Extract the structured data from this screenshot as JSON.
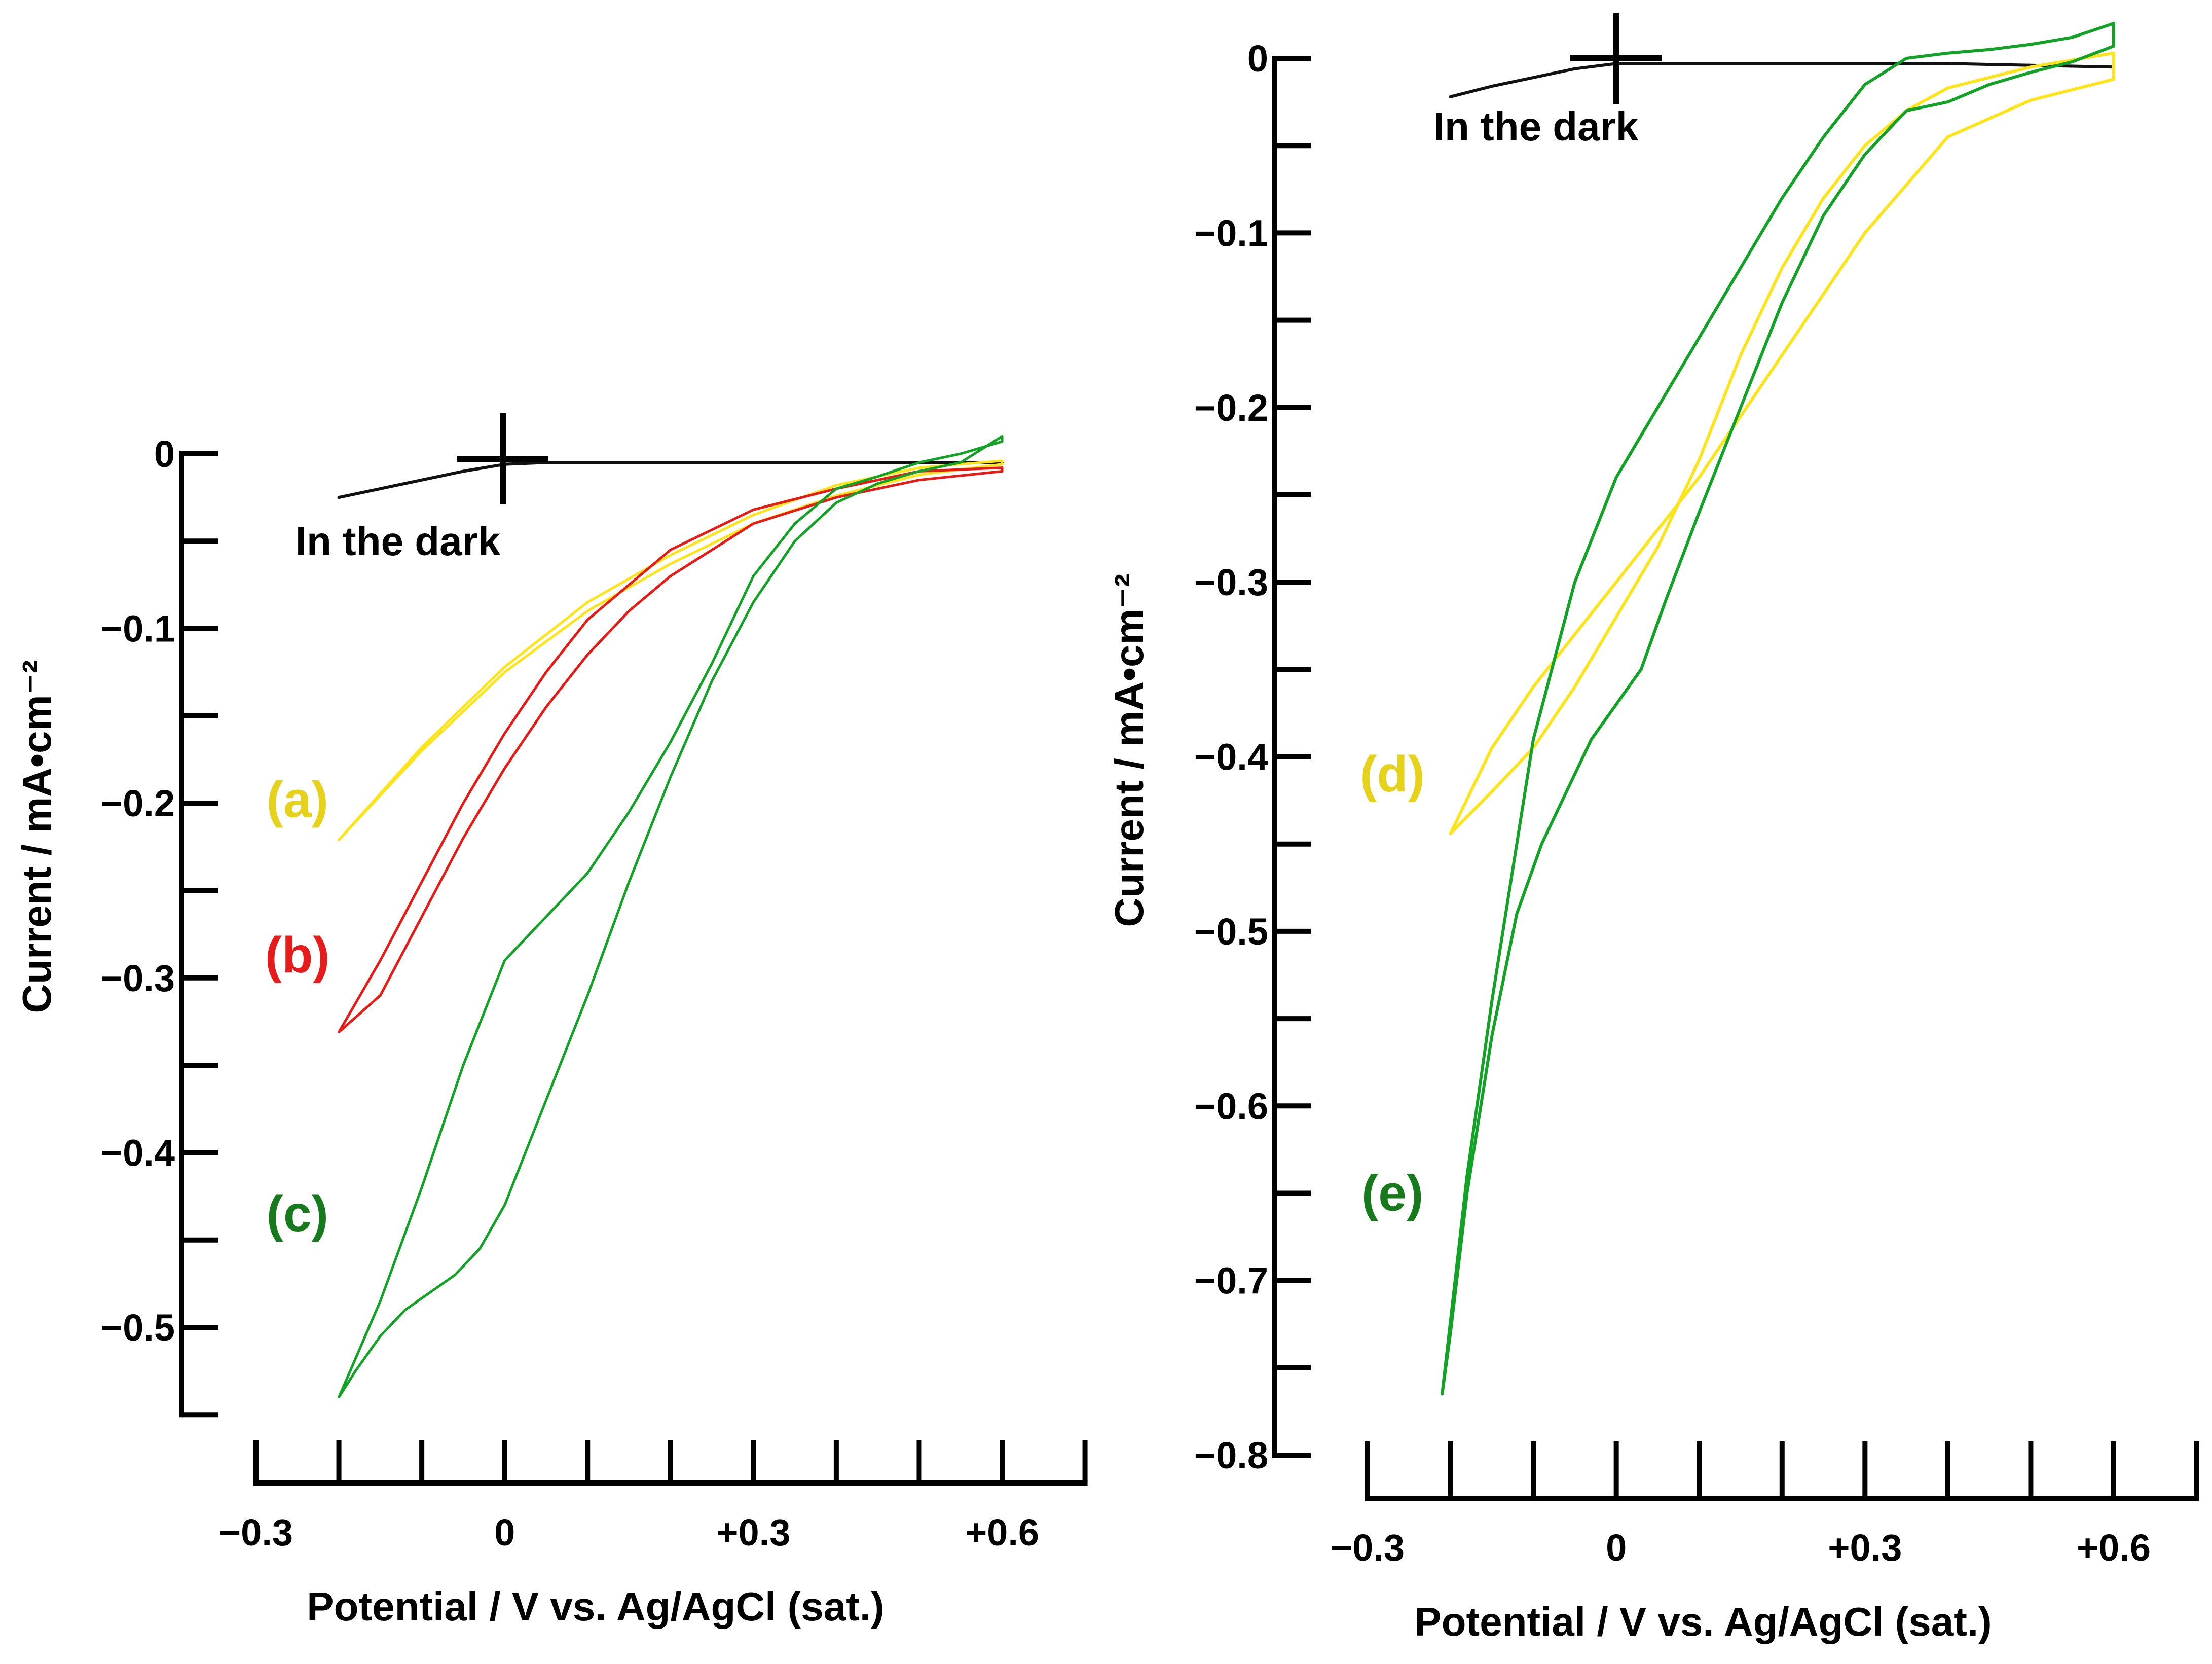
{
  "colors": {
    "yellow": "#ffe41a",
    "red": "#e81a14",
    "green": "#12a226",
    "dark": "#111111",
    "label_yellow": "#e6d21a",
    "label_red": "#e61c1c",
    "label_green": "#167a1c"
  },
  "chart_data": [
    {
      "type": "line",
      "title": "",
      "xlabel": "Potential / V vs. Ag/AgCl (sat.)",
      "ylabel": "Current / mA•cm⁻²",
      "xlim": [
        -0.3,
        0.7
      ],
      "ylim": [
        -0.55,
        0.0
      ],
      "x_tick_labels": [
        "−0.3",
        "0",
        "+0.3",
        "+0.6"
      ],
      "x_tick_values": [
        -0.3,
        0.0,
        0.3,
        0.6
      ],
      "y_tick_labels": [
        "0",
        "−0.1",
        "−0.2",
        "−0.3",
        "−0.4",
        "−0.5"
      ],
      "y_tick_values": [
        0.0,
        -0.1,
        -0.2,
        -0.3,
        -0.4,
        -0.5
      ],
      "annotation": "In the dark",
      "series": [
        {
          "name": "In the dark",
          "color": "#111111",
          "x": [
            -0.2,
            -0.15,
            -0.1,
            -0.05,
            0.0,
            0.05,
            0.1,
            0.2,
            0.3,
            0.4,
            0.5,
            0.6
          ],
          "y": [
            -0.025,
            -0.02,
            -0.015,
            -0.01,
            -0.006,
            -0.005,
            -0.005,
            -0.005,
            -0.005,
            -0.005,
            -0.005,
            -0.005
          ]
        },
        {
          "name": "(a)",
          "color": "#ffe41a",
          "x": [
            -0.2,
            -0.1,
            0.0,
            0.1,
            0.2,
            0.3,
            0.4,
            0.5,
            0.6,
            0.6,
            0.5,
            0.4,
            0.3,
            0.2,
            0.1,
            0.0,
            -0.1,
            -0.2
          ],
          "y": [
            -0.221,
            -0.17,
            -0.125,
            -0.09,
            -0.063,
            -0.04,
            -0.024,
            -0.012,
            -0.006,
            -0.004,
            -0.008,
            -0.018,
            -0.035,
            -0.058,
            -0.085,
            -0.122,
            -0.168,
            -0.221
          ]
        },
        {
          "name": "(b)",
          "color": "#e81a14",
          "x": [
            -0.2,
            -0.15,
            -0.1,
            -0.05,
            0.0,
            0.05,
            0.1,
            0.15,
            0.2,
            0.3,
            0.4,
            0.5,
            0.6,
            0.6,
            0.5,
            0.4,
            0.3,
            0.2,
            0.1,
            0.05,
            0.0,
            -0.05,
            -0.1,
            -0.15,
            -0.2
          ],
          "y": [
            -0.331,
            -0.31,
            -0.265,
            -0.22,
            -0.18,
            -0.145,
            -0.115,
            -0.09,
            -0.07,
            -0.04,
            -0.025,
            -0.015,
            -0.01,
            -0.008,
            -0.01,
            -0.02,
            -0.032,
            -0.055,
            -0.095,
            -0.125,
            -0.16,
            -0.2,
            -0.245,
            -0.29,
            -0.331
          ]
        },
        {
          "name": "(c)",
          "color": "#12a226",
          "x": [
            -0.2,
            -0.18,
            -0.15,
            -0.12,
            -0.09,
            -0.06,
            -0.03,
            0.0,
            0.05,
            0.1,
            0.15,
            0.2,
            0.25,
            0.3,
            0.35,
            0.4,
            0.45,
            0.5,
            0.55,
            0.6,
            0.6,
            0.55,
            0.5,
            0.45,
            0.4,
            0.35,
            0.3,
            0.25,
            0.2,
            0.15,
            0.1,
            0.05,
            0.0,
            -0.05,
            -0.1,
            -0.15,
            -0.2
          ],
          "y": [
            -0.54,
            -0.525,
            -0.505,
            -0.49,
            -0.48,
            -0.47,
            -0.455,
            -0.43,
            -0.37,
            -0.31,
            -0.245,
            -0.185,
            -0.13,
            -0.085,
            -0.05,
            -0.028,
            -0.017,
            -0.01,
            -0.005,
            0.01,
            0.007,
            0.0,
            -0.005,
            -0.013,
            -0.02,
            -0.04,
            -0.07,
            -0.12,
            -0.165,
            -0.205,
            -0.24,
            -0.265,
            -0.29,
            -0.35,
            -0.42,
            -0.485,
            -0.54
          ]
        }
      ],
      "labels": [
        {
          "text": "(a)",
          "color": "#e6d21a",
          "x": -0.25,
          "y": -0.198
        },
        {
          "text": "(b)",
          "color": "#e61c1c",
          "x": -0.25,
          "y": -0.287
        },
        {
          "text": "(c)",
          "color": "#167a1c",
          "x": -0.25,
          "y": -0.435
        }
      ]
    },
    {
      "type": "line",
      "title": "",
      "xlabel": "Potential / V vs. Ag/AgCl (sat.)",
      "ylabel": "Current / mA•cm⁻²",
      "xlim": [
        -0.3,
        0.7
      ],
      "ylim": [
        -0.8,
        0.0
      ],
      "x_tick_labels": [
        "−0.3",
        "0",
        "+0.3",
        "+0.6"
      ],
      "x_tick_values": [
        -0.3,
        0.0,
        0.3,
        0.6
      ],
      "y_tick_labels": [
        "0",
        "−0.1",
        "−0.2",
        "−0.3",
        "−0.4",
        "−0.5",
        "−0.6",
        "−0.7",
        "−0.8"
      ],
      "y_tick_values": [
        0.0,
        -0.1,
        -0.2,
        -0.3,
        -0.4,
        -0.5,
        -0.6,
        -0.7,
        -0.8
      ],
      "annotation": "In the dark",
      "series": [
        {
          "name": "In the dark",
          "color": "#111111",
          "x": [
            -0.2,
            -0.15,
            -0.1,
            -0.05,
            0.0,
            0.05,
            0.1,
            0.2,
            0.3,
            0.4,
            0.5,
            0.6
          ],
          "y": [
            -0.022,
            -0.016,
            -0.011,
            -0.006,
            -0.003,
            -0.003,
            -0.003,
            -0.003,
            -0.003,
            -0.003,
            -0.004,
            -0.005
          ]
        },
        {
          "name": "(d)",
          "color": "#ffe41a",
          "x": [
            -0.2,
            -0.15,
            -0.1,
            -0.05,
            0.0,
            0.05,
            0.1,
            0.15,
            0.2,
            0.25,
            0.3,
            0.35,
            0.4,
            0.5,
            0.6,
            0.6,
            0.5,
            0.4,
            0.3,
            0.2,
            0.1,
            0.0,
            -0.05,
            -0.1,
            -0.15,
            -0.2
          ],
          "y": [
            -0.444,
            -0.42,
            -0.395,
            -0.36,
            -0.32,
            -0.28,
            -0.23,
            -0.17,
            -0.12,
            -0.08,
            -0.05,
            -0.03,
            -0.017,
            -0.005,
            0.003,
            -0.012,
            -0.024,
            -0.045,
            -0.1,
            -0.17,
            -0.24,
            -0.3,
            -0.33,
            -0.36,
            -0.395,
            -0.444
          ]
        },
        {
          "name": "(e)",
          "color": "#12a226",
          "x": [
            -0.21,
            -0.2,
            -0.18,
            -0.15,
            -0.12,
            -0.09,
            -0.06,
            -0.03,
            0.0,
            0.03,
            0.06,
            0.1,
            0.15,
            0.2,
            0.25,
            0.3,
            0.35,
            0.4,
            0.45,
            0.5,
            0.55,
            0.6,
            0.6,
            0.55,
            0.5,
            0.45,
            0.4,
            0.35,
            0.3,
            0.25,
            0.2,
            0.15,
            0.1,
            0.05,
            0.0,
            -0.05,
            -0.1,
            -0.15,
            -0.18,
            -0.21
          ],
          "y": [
            -0.765,
            -0.73,
            -0.65,
            -0.56,
            -0.49,
            -0.45,
            -0.42,
            -0.39,
            -0.37,
            -0.35,
            -0.31,
            -0.26,
            -0.2,
            -0.14,
            -0.09,
            -0.055,
            -0.03,
            -0.025,
            -0.015,
            -0.008,
            -0.002,
            0.007,
            0.02,
            0.012,
            0.008,
            0.005,
            0.003,
            0.0,
            -0.015,
            -0.045,
            -0.08,
            -0.12,
            -0.16,
            -0.2,
            -0.24,
            -0.3,
            -0.39,
            -0.54,
            -0.64,
            -0.765
          ]
        }
      ],
      "labels": [
        {
          "text": "(d)",
          "color": "#e6d21a",
          "x": -0.27,
          "y": -0.41
        },
        {
          "text": "(e)",
          "color": "#167a1c",
          "x": -0.27,
          "y": -0.65
        }
      ]
    }
  ]
}
